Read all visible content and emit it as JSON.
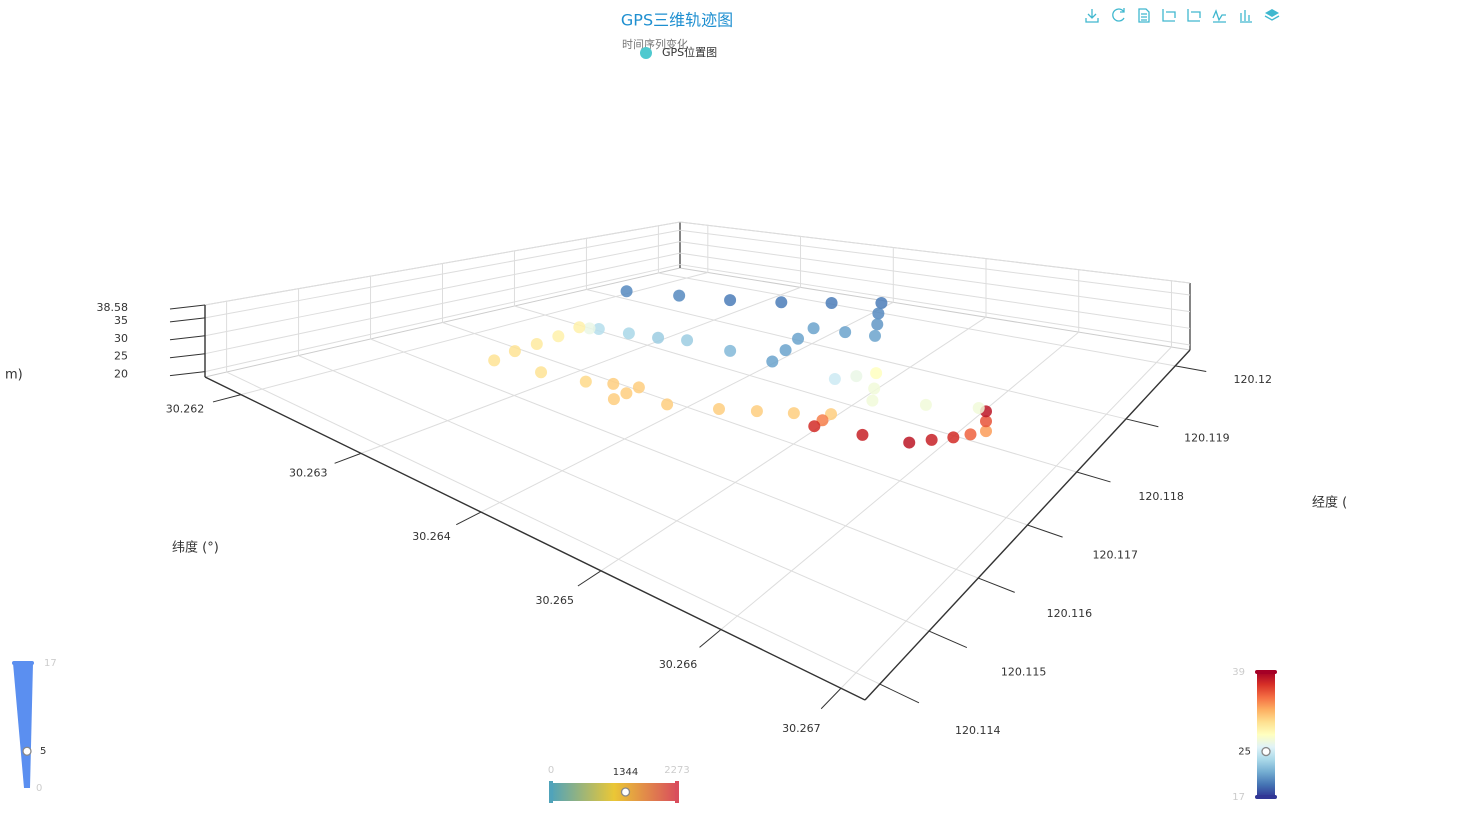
{
  "chart_data": {
    "type": "scatter3D",
    "title": "GPS三维轨迹图",
    "subtitle": "时间序列变化",
    "series": [
      {
        "name": "GPS位置图",
        "color": "#4fc9cf"
      }
    ],
    "x_label": "经度 (",
    "y_label": "纬度 (°)",
    "z_label": "m)",
    "x": [
      120.11911,
      120.11932,
      120.11953,
      120.11974,
      120.11996,
      120.12017,
      120.11988,
      120.1196,
      120.11931,
      120.11925,
      120.11918,
      120.11887,
      120.11856,
      120.11825,
      120.11816,
      120.11806,
      120.11793,
      120.1178,
      120.11766,
      120.11743,
      120.1172,
      120.11684,
      120.11647,
      120.11611,
      120.11575,
      120.11587,
      120.11598,
      120.1161,
      120.11621,
      120.11601,
      120.11581,
      120.11608,
      120.11634,
      120.11654,
      120.11673,
      120.11693,
      120.11657,
      120.11621,
      120.11631,
      120.11641,
      120.11661,
      120.1168,
      120.11707,
      120.11733,
      120.11733,
      120.11733,
      120.11799,
      120.11806,
      120.11812,
      120.11789,
      120.11766,
      120.11786,
      120.11806
    ],
    "y": [
      30.26203,
      30.26242,
      30.2628,
      30.26319,
      30.26357,
      30.26396,
      30.26412,
      30.26429,
      30.26445,
      30.26418,
      30.2639,
      30.26394,
      30.26401,
      30.26407,
      30.26371,
      30.26335,
      30.26315,
      30.26295,
      30.26275,
      30.26281,
      30.26286,
      30.26289,
      30.26292,
      30.26294,
      30.26297,
      30.26332,
      30.26366,
      30.26384,
      30.26401,
      30.26401,
      30.26401,
      30.26434,
      30.26467,
      30.26491,
      30.26515,
      30.26539,
      30.2655,
      30.26561,
      30.266,
      30.26638,
      30.26649,
      30.2666,
      30.26663,
      30.26665,
      30.26665,
      30.26665,
      30.26484,
      30.26501,
      30.26517,
      30.26528,
      30.26539,
      30.2658,
      30.26621
    ],
    "z": [
      20,
      20,
      19.5,
      19.5,
      19.5,
      19.5,
      20,
      20.5,
      21,
      21,
      21,
      21,
      21,
      21,
      22,
      23,
      23,
      23.5,
      24,
      26.5,
      29,
      29,
      29.5,
      30,
      30,
      30,
      30.5,
      31,
      31,
      31,
      31,
      31,
      31,
      31,
      31,
      31,
      34,
      37,
      37.5,
      38,
      37.5,
      37,
      35,
      33,
      35.5,
      38,
      25,
      26.5,
      28,
      27,
      27,
      27,
      27
    ],
    "xlim": [
      120.1137,
      120.1203
    ],
    "ylim": [
      30.2617,
      30.2672
    ],
    "zlim": [
      18.5,
      38.58
    ],
    "xticks": [
      120.114,
      120.115,
      120.116,
      120.117,
      120.118,
      120.119,
      120.12
    ],
    "yticks": [
      30.262,
      30.263,
      30.264,
      30.265,
      30.266,
      30.267
    ],
    "zticks": [
      20,
      25,
      30,
      35,
      38.58
    ],
    "grid": true,
    "visual_maps": [
      {
        "min": 0,
        "max": 17,
        "value": 5,
        "color": "#5b8ff0"
      },
      {
        "min": 0,
        "max": 2273,
        "value": 1344,
        "colors": [
          "#50a3ba",
          "#eac736",
          "#d94e5d"
        ]
      },
      {
        "min": 17,
        "max": 39,
        "value": 25,
        "colors": [
          "#313695",
          "#4575b4",
          "#74add1",
          "#abd9e9",
          "#e0f3f8",
          "#ffffbf",
          "#fee090",
          "#fdae61",
          "#f46d43",
          "#d73027",
          "#a50026"
        ]
      }
    ]
  }
}
